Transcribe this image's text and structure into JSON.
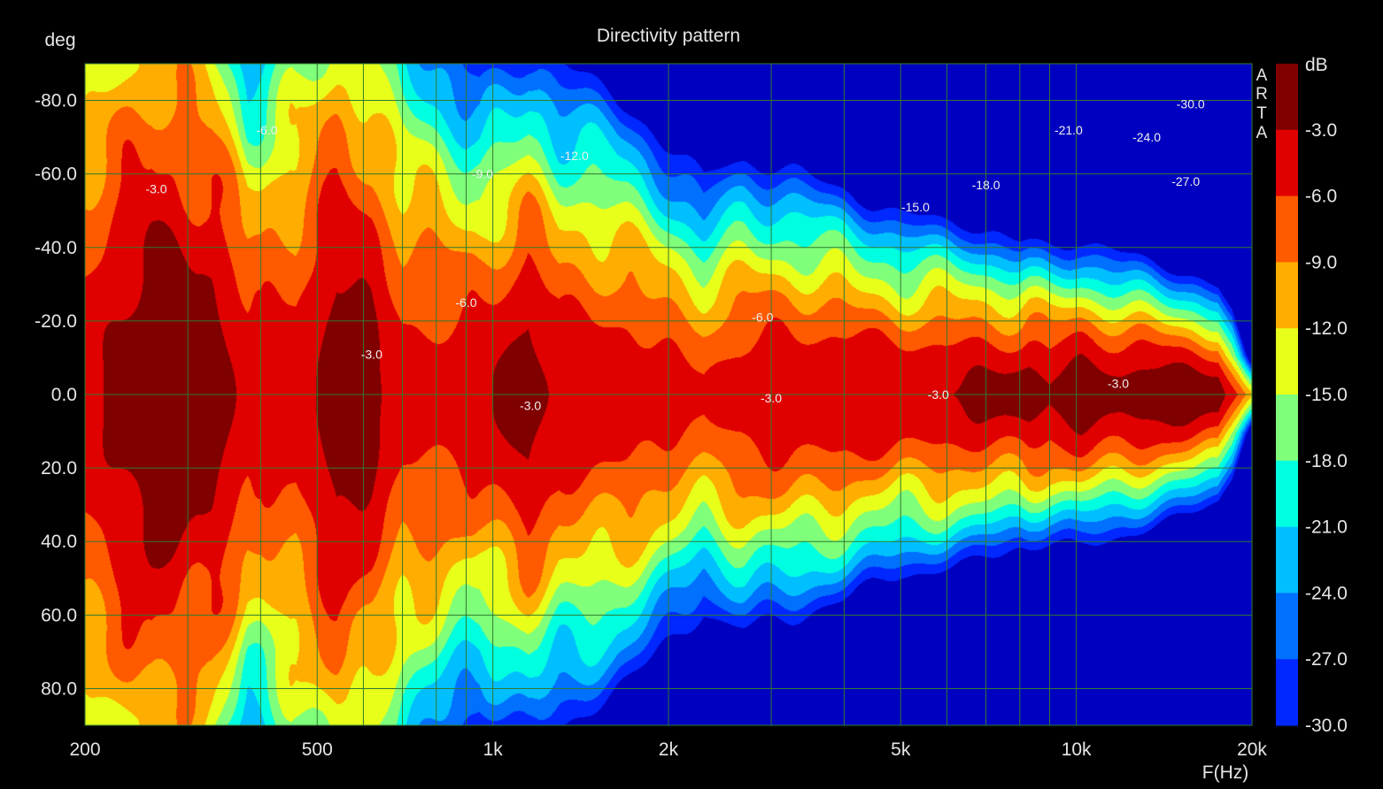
{
  "chart_data": {
    "type": "heatmap",
    "title": "Directivity pattern",
    "ylabel": "deg",
    "xlabel": "F(Hz)",
    "colorbar_label": "dB",
    "brand_letters": [
      "A",
      "R",
      "T",
      "A"
    ],
    "x_scale": "log",
    "xlim": [
      200,
      20000
    ],
    "ylim": [
      -90,
      90
    ],
    "y_inverted": true,
    "grid": true,
    "x_ticks": [
      {
        "value": 200,
        "label": "200"
      },
      {
        "value": 500,
        "label": "500"
      },
      {
        "value": 1000,
        "label": "1k"
      },
      {
        "value": 2000,
        "label": "2k"
      },
      {
        "value": 5000,
        "label": "5k"
      },
      {
        "value": 10000,
        "label": "10k"
      },
      {
        "value": 20000,
        "label": "20k"
      }
    ],
    "y_ticks": [
      {
        "value": -80,
        "label": "-80.0"
      },
      {
        "value": -60,
        "label": "-60.0"
      },
      {
        "value": -40,
        "label": "-40.0"
      },
      {
        "value": -20,
        "label": "-20.0"
      },
      {
        "value": 0,
        "label": "0.0"
      },
      {
        "value": 20,
        "label": "20.0"
      },
      {
        "value": 40,
        "label": "40.0"
      },
      {
        "value": 60,
        "label": "60.0"
      },
      {
        "value": 80,
        "label": "80.0"
      }
    ],
    "levels": [
      {
        "label": "-3.0",
        "color": "#800000"
      },
      {
        "label": "-6.0",
        "color": "#e10000"
      },
      {
        "label": "-9.0",
        "color": "#ff5a00"
      },
      {
        "label": "-12.0",
        "color": "#ffad00"
      },
      {
        "label": "-15.0",
        "color": "#e8ff1a"
      },
      {
        "label": "-18.0",
        "color": "#7fff7a"
      },
      {
        "label": "-21.0",
        "color": "#00ffe0"
      },
      {
        "label": "-24.0",
        "color": "#00bfff"
      },
      {
        "label": "-27.0",
        "color": "#0070ff"
      },
      {
        "label": "-30.0",
        "color": "#0028ff"
      }
    ],
    "colorbar_floor_color": "#0000c0",
    "contour_labels": [
      {
        "text": "-3.0",
        "freq": 265,
        "deg": -56
      },
      {
        "text": "-6.0",
        "freq": 410,
        "deg": -72
      },
      {
        "text": "-3.0",
        "freq": 620,
        "deg": -11
      },
      {
        "text": "-6.0",
        "freq": 900,
        "deg": -25
      },
      {
        "text": "-9.0",
        "freq": 960,
        "deg": -60
      },
      {
        "text": "-12.0",
        "freq": 1380,
        "deg": -65
      },
      {
        "text": "-3.0",
        "freq": 1160,
        "deg": 3
      },
      {
        "text": "-6.0",
        "freq": 2900,
        "deg": -21
      },
      {
        "text": "-3.0",
        "freq": 3000,
        "deg": 1
      },
      {
        "text": "-15.0",
        "freq": 5300,
        "deg": -51
      },
      {
        "text": "-3.0",
        "freq": 5800,
        "deg": 0
      },
      {
        "text": "-18.0",
        "freq": 7000,
        "deg": -57
      },
      {
        "text": "-21.0",
        "freq": 9700,
        "deg": -72
      },
      {
        "text": "-24.0",
        "freq": 13200,
        "deg": -70
      },
      {
        "text": "-30.0",
        "freq": 15700,
        "deg": -79
      },
      {
        "text": "-27.0",
        "freq": 15400,
        "deg": -58
      },
      {
        "text": "-3.0",
        "freq": 11800,
        "deg": -3
      }
    ]
  }
}
